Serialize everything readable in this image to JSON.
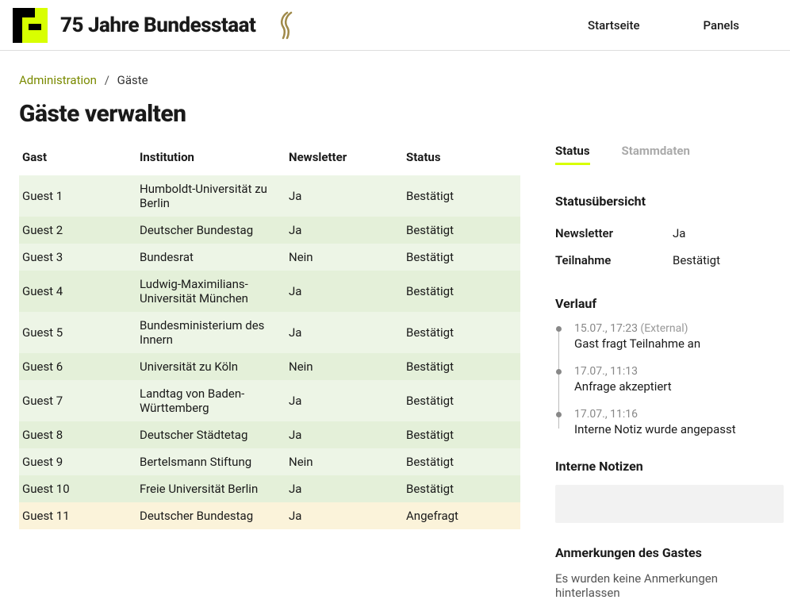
{
  "header": {
    "site_title": "75 Jahre Bundesstaat",
    "nav": {
      "home": "Startseite",
      "panels": "Panels"
    }
  },
  "breadcrumb": {
    "admin": "Administration",
    "sep": "/",
    "current": "Gäste"
  },
  "page_title": "Gäste verwalten",
  "table": {
    "columns": {
      "gast": "Gast",
      "institution": "Institution",
      "newsletter": "Newsletter",
      "status": "Status"
    },
    "rows": [
      {
        "gast": "Guest 1",
        "institution": "Humboldt-Universität zu Berlin",
        "newsletter": "Ja",
        "status": "Bestätigt",
        "row_style": "green-light"
      },
      {
        "gast": "Guest 2",
        "institution": "Deutscher Bundestag",
        "newsletter": "Ja",
        "status": "Bestätigt",
        "row_style": "green-dark"
      },
      {
        "gast": "Guest 3",
        "institution": "Bundesrat",
        "newsletter": "Nein",
        "status": "Bestätigt",
        "row_style": "green-light"
      },
      {
        "gast": "Guest 4",
        "institution": "Ludwig-Maximilians-Universität München",
        "newsletter": "Ja",
        "status": "Bestätigt",
        "row_style": "green-dark"
      },
      {
        "gast": "Guest 5",
        "institution": "Bundesministerium des Innern",
        "newsletter": "Ja",
        "status": "Bestätigt",
        "row_style": "green-light"
      },
      {
        "gast": "Guest 6",
        "institution": "Universität zu Köln",
        "newsletter": "Nein",
        "status": "Bestätigt",
        "row_style": "green-dark"
      },
      {
        "gast": "Guest 7",
        "institution": "Landtag von Baden-Württemberg",
        "newsletter": "Ja",
        "status": "Bestätigt",
        "row_style": "green-light"
      },
      {
        "gast": "Guest 8",
        "institution": "Deutscher Städtetag",
        "newsletter": "Ja",
        "status": "Bestätigt",
        "row_style": "green-dark"
      },
      {
        "gast": "Guest 9",
        "institution": "Bertelsmann Stiftung",
        "newsletter": "Nein",
        "status": "Bestätigt",
        "row_style": "green-light"
      },
      {
        "gast": "Guest 10",
        "institution": "Freie Universität Berlin",
        "newsletter": "Ja",
        "status": "Bestätigt",
        "row_style": "green-dark"
      },
      {
        "gast": "Guest 11",
        "institution": "Deutscher Bundestag",
        "newsletter": "Ja",
        "status": "Angefragt",
        "row_style": "yellow"
      }
    ]
  },
  "side": {
    "tabs": {
      "status": "Status",
      "stammdaten": "Stammdaten"
    },
    "status_overview": {
      "title": "Statusübersicht",
      "newsletter_label": "Newsletter",
      "newsletter_value": "Ja",
      "teilnahme_label": "Teilnahme",
      "teilnahme_value": "Bestätigt"
    },
    "history": {
      "title": "Verlauf",
      "items": [
        {
          "meta": "15.07., 17:23",
          "external": "(External)",
          "text": "Gast fragt Teilnahme an"
        },
        {
          "meta": "17.07., 11:13",
          "external": "",
          "text": "Anfrage akzeptiert"
        },
        {
          "meta": "17.07., 11:16",
          "external": "",
          "text": "Interne Notiz wurde angepasst"
        }
      ]
    },
    "internal_notes": {
      "title": "Interne Notizen"
    },
    "guest_remarks": {
      "title": "Anmerkungen des Gastes",
      "text": "Es wurden keine Anmerkungen hinterlassen"
    }
  },
  "colors": {
    "accent": "#d8ff00",
    "row_green_light": "#edf5e6",
    "row_green_dark": "#e4f0d9",
    "row_yellow": "#fbf3da",
    "link": "#7a8a00"
  }
}
